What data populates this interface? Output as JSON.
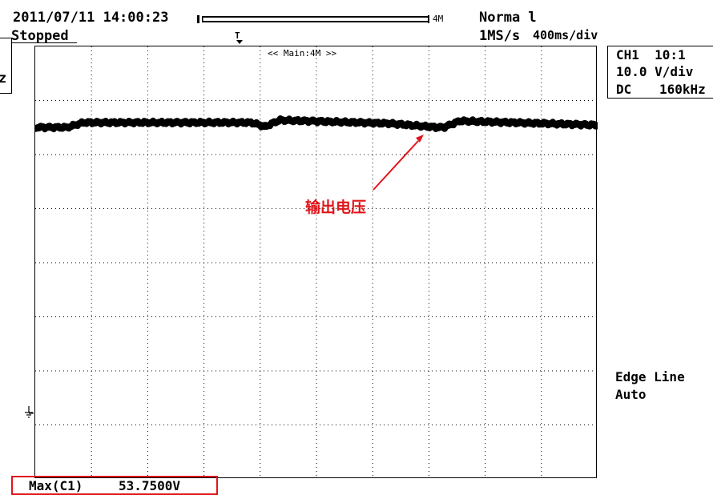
{
  "header": {
    "timestamp": "2011/07/11 14:00:23",
    "status": "Stopped",
    "trigger_mode": "Norma l",
    "record_length": "4M",
    "sample_rate": "1MS/s",
    "time_div": "400ms/div"
  },
  "screen": {
    "main_label": "<< Main:4M >>"
  },
  "channel": {
    "line1": "CH1  10:1",
    "line2": "10.0 V/div",
    "coupling": "DC",
    "bandwidth": "160kHz"
  },
  "left_stub": {
    "text": "z"
  },
  "trigger": {
    "type_line": "Edge Line",
    "mode_line": "Auto"
  },
  "annotation": {
    "label": "输出电压",
    "color": "#e0161b"
  },
  "measurement": {
    "name": "Max(C1)",
    "value": "53.7500V",
    "box_color": "#e0161b"
  },
  "colors": {
    "trace": "#000000",
    "grid": "#000000",
    "accent": "#e0161b"
  }
}
